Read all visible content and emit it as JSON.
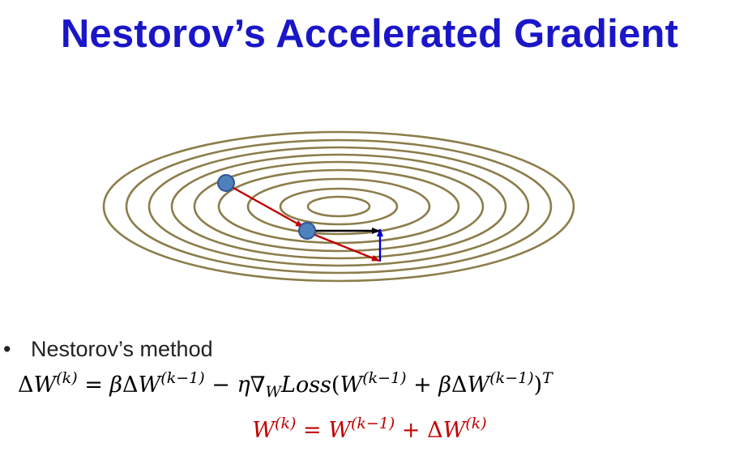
{
  "title": "Nestorov’s Accelerated Gradient",
  "bullet": "Nestorov’s method",
  "bullet_symbol": "•",
  "colors": {
    "title": "#1a16c8",
    "contour": "#8b7d4a",
    "point_fill": "#4f81bd",
    "point_stroke": "#2f5597",
    "momentum_arrow": "#c00000",
    "black_arrow": "#000000",
    "gradient_arrow": "#0000cc",
    "eq2": "#c00000"
  },
  "eq1": {
    "lhs_delta": "Δ",
    "lhs_W": "W",
    "lhs_sup": "(k)",
    "eq": " = ",
    "beta1": "β",
    "delta1": "Δ",
    "W1": "W",
    "sup1": "(k−1)",
    "minus": " −  ",
    "eta": "η",
    "nabla": "∇",
    "sub_W": "W",
    "loss": "Loss",
    "lparen": "(",
    "W2": "W",
    "sup2": "(k−1)",
    "plus": " + ",
    "beta2": "β",
    "delta2": "Δ",
    "W3": "W",
    "sup3": "(k−1)",
    "rparen": ")",
    "T": "T"
  },
  "eq2": {
    "W_lhs": "W",
    "sup_lhs": "(k)",
    "eq": " = ",
    "W1": "W",
    "sup1": "(k−1)",
    "plus": " + ",
    "delta": "Δ",
    "W2": "W",
    "sup2": "(k)"
  }
}
